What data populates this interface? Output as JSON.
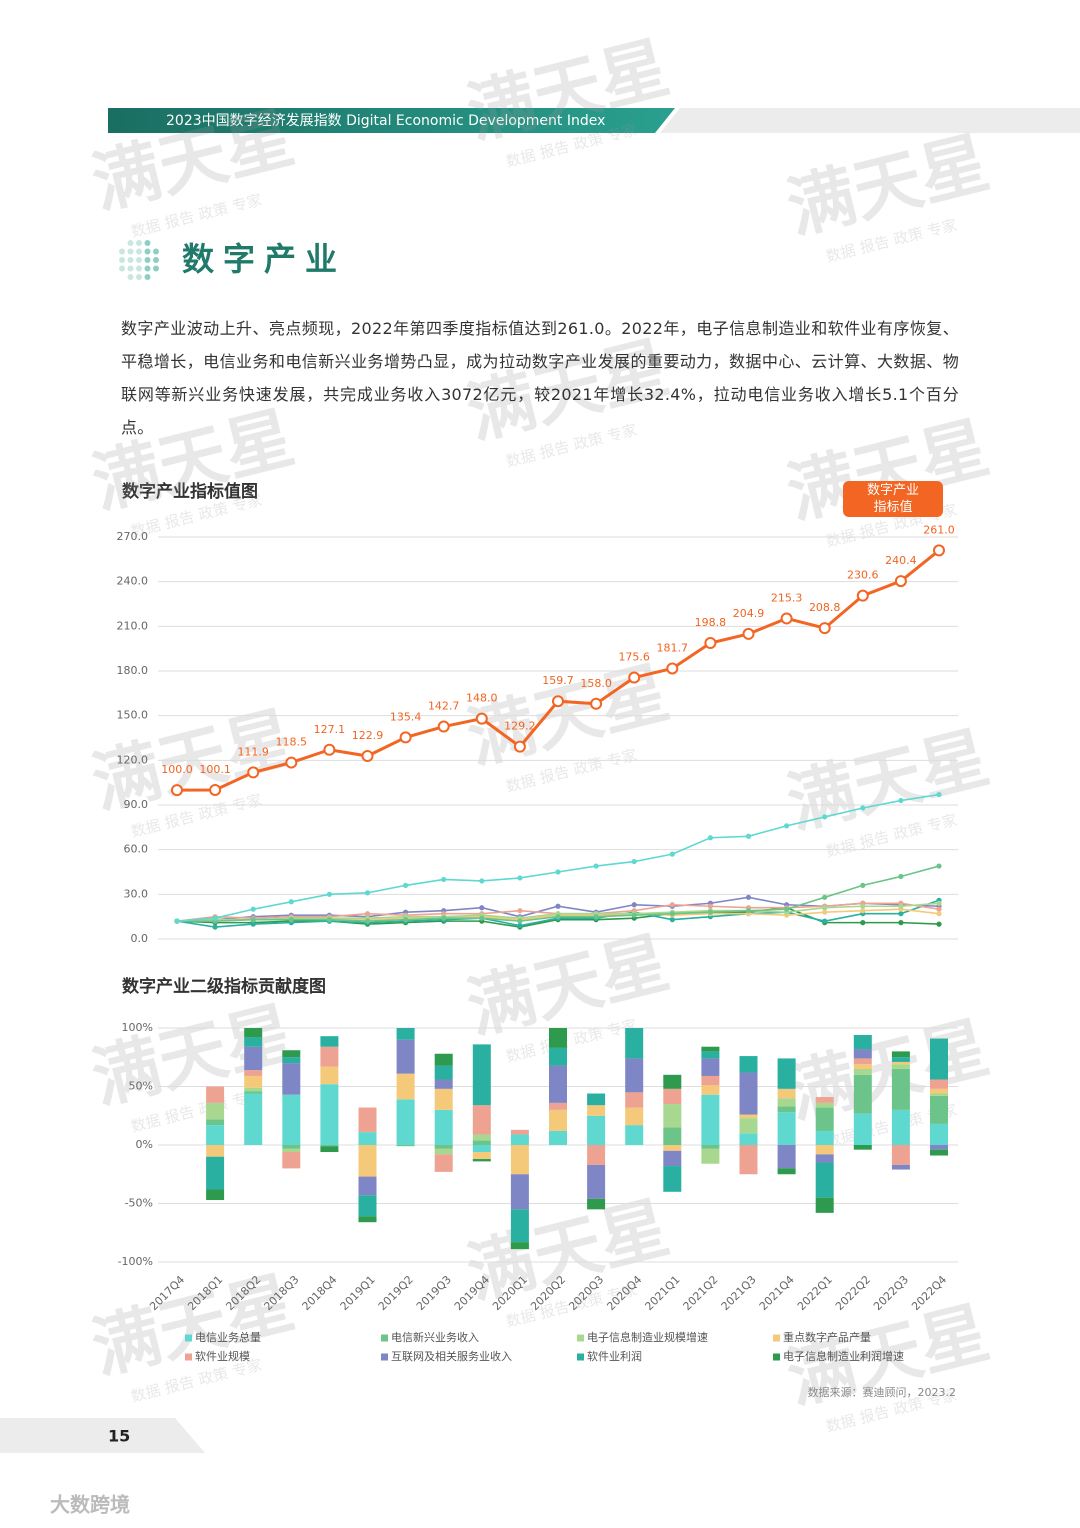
{
  "header": {
    "title": "2023中国数字经济发展指数 Digital Economic Development Index"
  },
  "section_title": "数字产业",
  "paragraph": "数字产业波动上升、亮点频现，2022年第四季度指标值达到261.0。2022年，电子信息制造业和软件业有序恢复、平稳增长，电信业务和电信新兴业务增势凸显，成为拉动数字产业发展的重要动力，数据中心、云计算、大数据、物联网等新兴业务快速发展，共完成业务收入3072亿元，较2021年增长32.4%，拉动电信业务收入增长5.1个百分点。",
  "chart_data": [
    {
      "type": "line",
      "title": "数字产业指标值图",
      "ylim": [
        0,
        270
      ],
      "yticks": [
        {
          "value": 0,
          "label": "0.0"
        },
        {
          "value": 30,
          "label": "30.0"
        },
        {
          "value": 60,
          "label": "60.0"
        },
        {
          "value": 90,
          "label": "90.0"
        },
        {
          "value": 120,
          "label": "120.0"
        },
        {
          "value": 150,
          "label": "150.0"
        },
        {
          "value": 180,
          "label": "180.0"
        },
        {
          "value": 210,
          "label": "210.0"
        },
        {
          "value": 240,
          "label": "240.0"
        },
        {
          "value": 270,
          "label": "270.0"
        }
      ],
      "grid": true,
      "legend": "top-right",
      "series": [
        {
          "name": "数字产业指标值",
          "color": "#f26522",
          "values": [
            100.0,
            100.1,
            111.9,
            118.5,
            127.1,
            122.9,
            135.4,
            142.7,
            148.0,
            129.2,
            159.7,
            158.0,
            175.6,
            181.7,
            198.8,
            204.9,
            215.3,
            208.8,
            230.6,
            240.4,
            261.0
          ],
          "value_labels": [
            "100.0",
            "100.1",
            "111.9",
            "118.5",
            "127.1",
            "122.9",
            "135.4",
            "142.7",
            "148.0",
            "129.2",
            "159.7",
            "158.0",
            "175.6",
            "181.7",
            "198.8",
            "204.9",
            "215.3",
            "208.8",
            "230.6",
            "240.4",
            "261.0"
          ]
        },
        {
          "color": "#5fd8d0",
          "values": [
            12,
            14,
            20,
            25,
            30,
            31,
            36,
            40,
            39,
            41,
            45,
            49,
            52,
            57,
            68,
            69,
            76,
            82,
            88,
            93,
            97
          ]
        },
        {
          "color": "#6cc48a",
          "values": [
            12,
            12,
            13,
            13,
            13,
            12,
            13,
            14,
            14,
            12,
            15,
            15,
            16,
            17,
            18,
            19,
            20,
            28,
            36,
            42,
            49
          ]
        },
        {
          "color": "#a8d88f",
          "values": [
            12,
            13,
            13,
            14,
            14,
            14,
            15,
            15,
            16,
            14,
            17,
            17,
            17,
            18,
            19,
            19,
            18,
            21,
            22,
            22,
            24
          ]
        },
        {
          "color": "#f5c97a",
          "values": [
            12,
            13,
            13,
            13,
            13,
            13,
            14,
            15,
            15,
            13,
            16,
            16,
            17,
            16,
            17,
            17,
            16,
            18,
            19,
            20,
            17
          ]
        },
        {
          "color": "#eea392",
          "values": [
            12,
            15,
            14,
            15,
            15,
            17,
            16,
            17,
            17,
            19,
            17,
            17,
            19,
            23,
            22,
            21,
            21,
            22,
            24,
            24,
            20
          ]
        },
        {
          "color": "#7f86c6",
          "values": [
            12,
            13,
            15,
            16,
            16,
            15,
            18,
            19,
            21,
            15,
            22,
            18,
            23,
            22,
            24,
            28,
            23,
            22,
            24,
            23,
            22
          ]
        },
        {
          "color": "#2ab0a0",
          "values": [
            12,
            8,
            10,
            11,
            12,
            11,
            12,
            13,
            14,
            9,
            14,
            14,
            18,
            13,
            15,
            17,
            18,
            12,
            17,
            17,
            26
          ]
        },
        {
          "color": "#2e9a4e",
          "values": [
            12,
            11,
            11,
            12,
            12,
            10,
            11,
            12,
            12,
            8,
            13,
            13,
            14,
            17,
            18,
            18,
            21,
            11,
            11,
            11,
            10
          ]
        }
      ]
    },
    {
      "type": "stacked_bar",
      "title": "数字产业二级指标贡献度图",
      "categories": [
        "2017Q4",
        "2018Q1",
        "2018Q2",
        "2018Q3",
        "2018Q4",
        "2019Q1",
        "2019Q2",
        "2019Q3",
        "2019Q4",
        "2020Q1",
        "2020Q2",
        "2020Q3",
        "2020Q4",
        "2021Q1",
        "2021Q2",
        "2021Q3",
        "2021Q4",
        "2022Q1",
        "2022Q2",
        "2022Q3",
        "2022Q4"
      ],
      "ylim": [
        -100,
        100
      ],
      "yticks": [
        {
          "value": -100,
          "label": "-100%"
        },
        {
          "value": -50,
          "label": "-50%"
        },
        {
          "value": 0,
          "label": "0%"
        },
        {
          "value": 50,
          "label": "50%"
        },
        {
          "value": 100,
          "label": "100%"
        }
      ],
      "grid": true,
      "legend": "bottom",
      "series": [
        {
          "name": "电信业务总量",
          "color": "#5fd8d0",
          "values": [
            0,
            17,
            44,
            43,
            52,
            11,
            39,
            30,
            -6,
            9,
            12,
            25,
            17,
            0,
            43,
            10,
            28,
            12,
            27,
            30,
            18
          ]
        },
        {
          "name": "电信新兴业务收入",
          "color": "#6cc48a",
          "values": [
            0,
            5,
            2,
            -3,
            -1,
            0,
            -1,
            -3,
            4,
            0,
            0,
            0,
            0,
            15,
            -3,
            0,
            5,
            20,
            33,
            35,
            24
          ]
        },
        {
          "name": "电子信息制造业规模增速",
          "color": "#a8d88f",
          "values": [
            0,
            14,
            3,
            -3,
            0,
            0,
            0,
            -5,
            5,
            0,
            0,
            0,
            0,
            20,
            -13,
            13,
            7,
            4,
            5,
            4,
            2
          ]
        },
        {
          "name": "重点数字产品产量",
          "color": "#f5c97a",
          "values": [
            0,
            -10,
            10,
            0,
            15,
            -27,
            22,
            18,
            -6,
            -25,
            18,
            9,
            15,
            -5,
            8,
            3,
            8,
            -8,
            4,
            2,
            4
          ]
        },
        {
          "name": "软件业规模",
          "color": "#eea392",
          "values": [
            0,
            14,
            5,
            -14,
            17,
            21,
            0,
            -15,
            25,
            4,
            6,
            -17,
            13,
            13,
            8,
            -25,
            0,
            5,
            5,
            -17,
            8
          ]
        },
        {
          "name": "互联网及相关服务业收入",
          "color": "#7f86c6",
          "values": [
            0,
            0,
            20,
            27,
            0,
            -16,
            29,
            8,
            0,
            -30,
            32,
            -29,
            29,
            -13,
            15,
            36,
            -20,
            -7,
            8,
            -4,
            -4
          ]
        },
        {
          "name": "软件业利润",
          "color": "#2ab0a0",
          "values": [
            0,
            -28,
            8,
            5,
            9,
            -18,
            10,
            12,
            52,
            -28,
            15,
            10,
            26,
            -22,
            6,
            14,
            26,
            -30,
            12,
            4,
            35
          ]
        },
        {
          "name": "电子信息制造业利润增速",
          "color": "#2e9a4e",
          "values": [
            0,
            -9,
            8,
            6,
            -5,
            -5,
            0,
            10,
            -2,
            -6,
            17,
            -9,
            0,
            12,
            4,
            0,
            -5,
            -13,
            -4,
            5,
            -5
          ]
        }
      ]
    }
  ],
  "source": "数据来源：赛迪顾问，2023.2",
  "page_number": "15",
  "watermark": {
    "brand": "满天星",
    "tagline": "数据 报告 政策 专家"
  },
  "logo": "大数跨境"
}
